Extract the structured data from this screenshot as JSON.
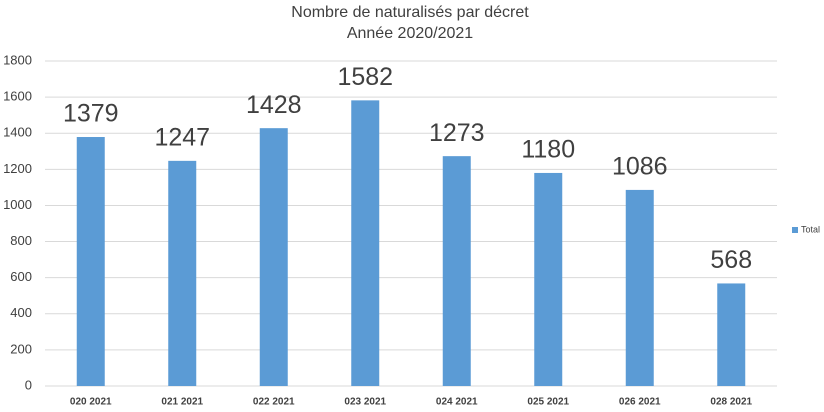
{
  "chart_data": {
    "type": "bar",
    "title": "Nombre de naturalisés par décret",
    "subtitle": "Année 2020/2021",
    "categories": [
      "020 2021",
      "021 2021",
      "022 2021",
      "023 2021",
      "024 2021",
      "025 2021",
      "026 2021",
      "028 2021"
    ],
    "series": [
      {
        "name": "Total",
        "color": "#5b9bd5",
        "values": [
          1379,
          1247,
          1428,
          1582,
          1273,
          1180,
          1086,
          568
        ]
      }
    ],
    "ylim": [
      0,
      1800
    ],
    "yticks": [
      0,
      200,
      400,
      600,
      800,
      1000,
      1200,
      1400,
      1600,
      1800
    ],
    "grid": true,
    "legend": "right"
  }
}
